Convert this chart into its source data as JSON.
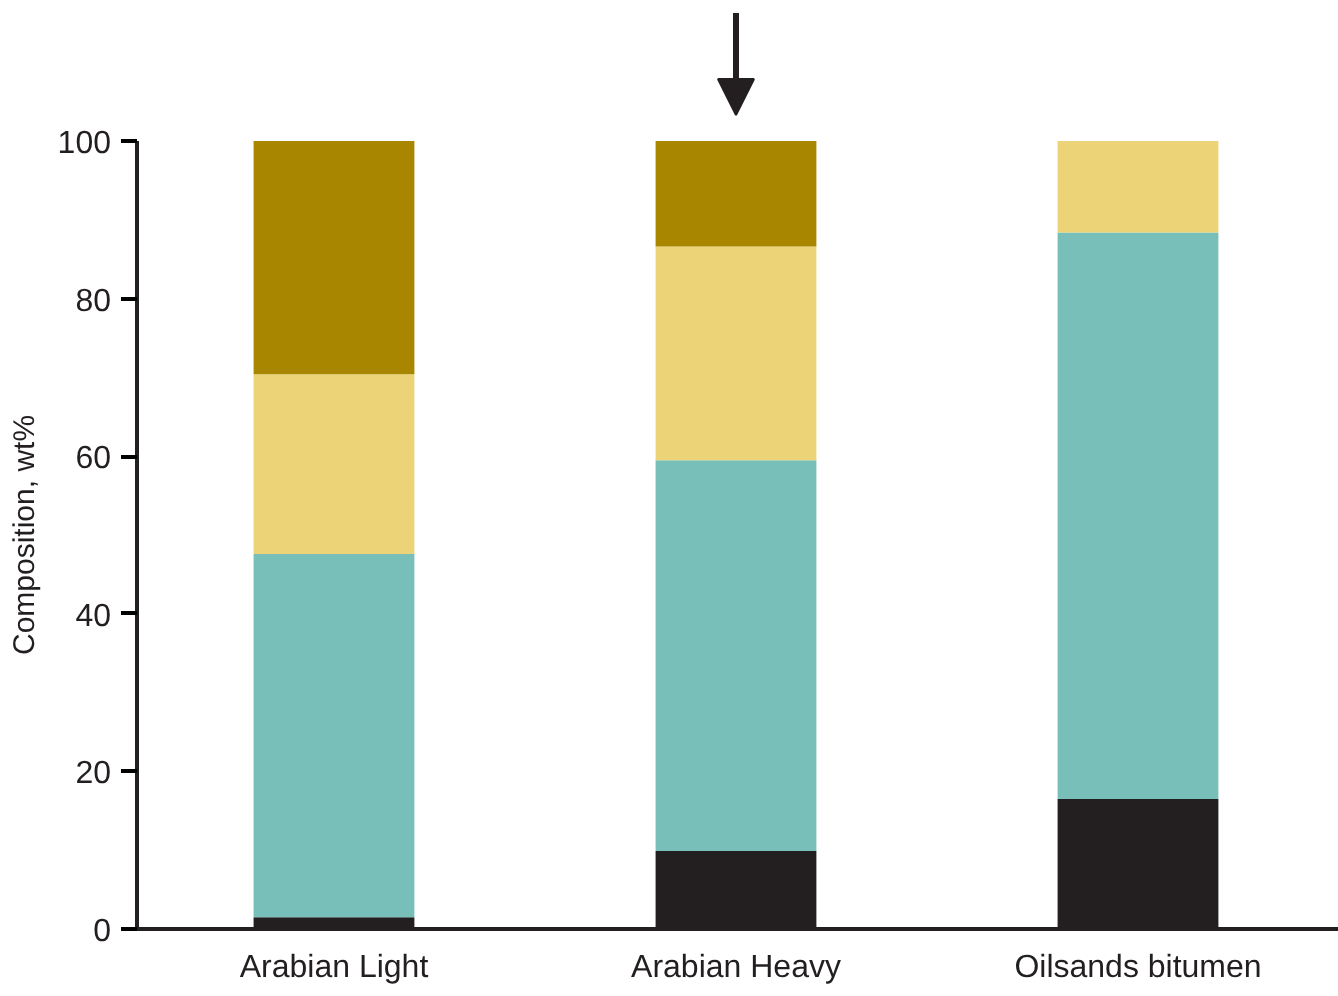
{
  "chart_data": {
    "type": "bar",
    "stacked": true,
    "ylabel": "Composition, wt%",
    "categories": [
      "Arabian Light",
      "Arabian Heavy",
      "Oilsands bitumen"
    ],
    "series": [
      {
        "color": "#231f20",
        "values": [
          1.5,
          9.9,
          16.5
        ]
      },
      {
        "color": "#77bfb8",
        "values": [
          46.1,
          49.6,
          71.9
        ]
      },
      {
        "color": "#edd377",
        "values": [
          22.8,
          27.1,
          11.6
        ]
      },
      {
        "color": "#a98600",
        "values": [
          29.6,
          13.4,
          0
        ]
      }
    ],
    "ylim": [
      0,
      100
    ],
    "yticks": [
      0,
      20,
      40,
      60,
      80,
      100
    ],
    "grid": false
  }
}
